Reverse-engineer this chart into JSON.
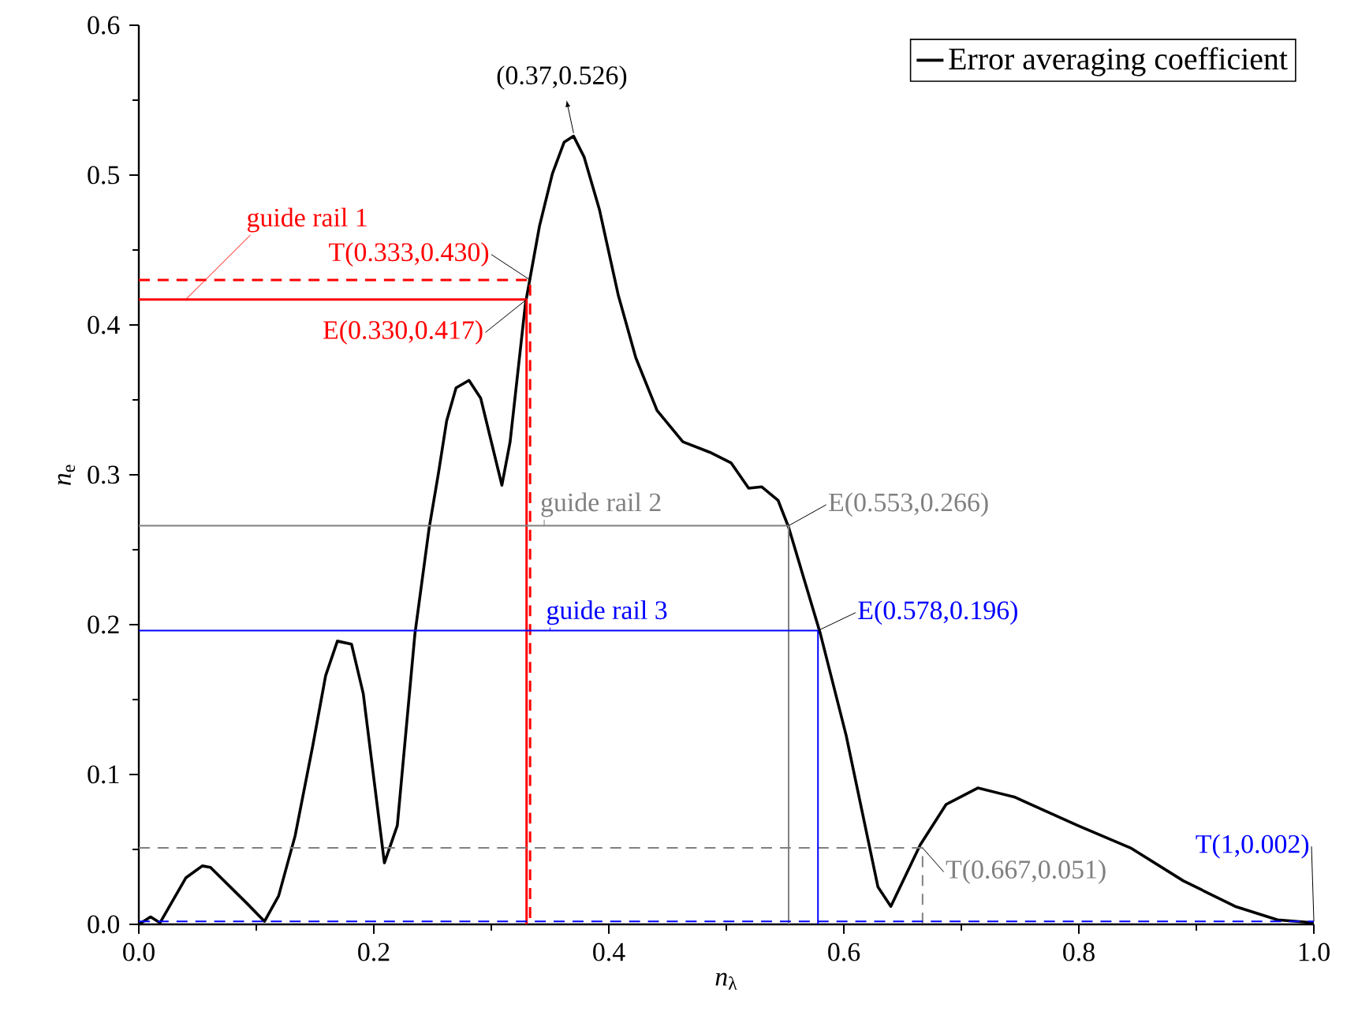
{
  "chart_data": {
    "type": "line",
    "xlabel": "*n*$_{λ}$",
    "ylabel": "*n*$_{e}$",
    "xlim": [
      0,
      1
    ],
    "ylim": [
      0,
      0.6
    ],
    "xticks": [
      {
        "value": 0,
        "label": "0.0"
      },
      0.2,
      0.4,
      0.6,
      0.8,
      {
        "value": 1,
        "label": "1.0"
      }
    ],
    "yticks": [
      {
        "value": 0,
        "label": "0.0"
      },
      0.1,
      0.2,
      0.3,
      0.4,
      0.5,
      0.6
    ],
    "legend": "top right",
    "grid": false,
    "series": [
      {
        "name": "Error averaging coefficient",
        "color": "#000000",
        "x": [
          0,
          0.01,
          0.018,
          0.04,
          0.054,
          0.061,
          0.092,
          0.107,
          0.119,
          0.133,
          0.148,
          0.159,
          0.169,
          0.181,
          0.191,
          0.209,
          0.22,
          0.235,
          0.247,
          0.255,
          0.262,
          0.27,
          0.281,
          0.291,
          0.309,
          0.316,
          0.329,
          0.341,
          0.352,
          0.362,
          0.37,
          0.379,
          0.392,
          0.408,
          0.423,
          0.441,
          0.463,
          0.486,
          0.504,
          0.519,
          0.53,
          0.544,
          0.553,
          0.58,
          0.602,
          0.629,
          0.64,
          0.665,
          0.687,
          0.714,
          0.745,
          0.799,
          0.844,
          0.889,
          0.933,
          0.969,
          1.0
        ],
        "values": [
          0,
          0.005,
          0.001,
          0.031,
          0.039,
          0.038,
          0.014,
          0.002,
          0.019,
          0.059,
          0.119,
          0.166,
          0.189,
          0.187,
          0.154,
          0.041,
          0.066,
          0.194,
          0.264,
          0.301,
          0.336,
          0.358,
          0.363,
          0.351,
          0.293,
          0.322,
          0.414,
          0.466,
          0.501,
          0.522,
          0.526,
          0.512,
          0.477,
          0.42,
          0.378,
          0.343,
          0.322,
          0.315,
          0.308,
          0.291,
          0.292,
          0.283,
          0.265,
          0.194,
          0.126,
          0.025,
          0.012,
          0.053,
          0.08,
          0.091,
          0.085,
          0.066,
          0.051,
          0.029,
          0.012,
          0.003,
          0.001
        ]
      },
      {
        "name": "guide rail 1",
        "color": "#ff0000",
        "x": [
          0,
          0.33,
          0.33
        ],
        "values": [
          0.417,
          0.417,
          0
        ]
      },
      {
        "color": "#ff0000",
        "line_style": "dashed",
        "x": [
          0,
          0.333,
          0.333
        ],
        "values": [
          0.43,
          0.43,
          0
        ]
      },
      {
        "name": "guide rail 2",
        "color": "#808080",
        "x": [
          0,
          0.553,
          0.553
        ],
        "values": [
          0.266,
          0.266,
          0
        ]
      },
      {
        "color": "#808080",
        "line_style": "dashed",
        "x": [
          0,
          0.667,
          0.667
        ],
        "values": [
          0.051,
          0.051,
          0
        ]
      },
      {
        "name": "guide rail 3",
        "color": "#0000ff",
        "x": [
          0,
          0.578,
          0.578
        ],
        "values": [
          0.196,
          0.196,
          0
        ]
      },
      {
        "color": "#0000ff",
        "line_style": "dashed",
        "x": [
          0,
          1
        ],
        "values": [
          0.002,
          0.002
        ]
      }
    ],
    "annotations": [
      {
        "text": "(0.37,0.526)",
        "x": 0.37,
        "y": 0.526
      },
      {
        "text": "T(0.333,0.430)",
        "x": 0.333,
        "y": 0.43
      },
      {
        "text": "E(0.330,0.417)",
        "x": 0.33,
        "y": 0.417
      },
      {
        "text": "E(0.553,0.266)",
        "x": 0.553,
        "y": 0.266
      },
      {
        "text": "E(0.578,0.196)",
        "x": 0.578,
        "y": 0.196
      },
      {
        "text": "T(0.667,0.051)",
        "x": 0.667,
        "y": 0.051
      },
      {
        "text": "T(1,0.002)",
        "x": 1,
        "y": 0.002
      }
    ]
  }
}
